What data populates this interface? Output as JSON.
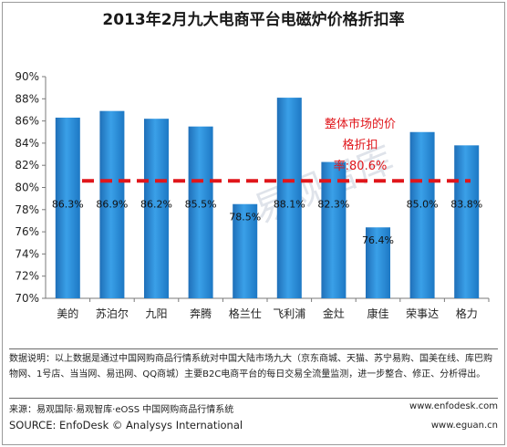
{
  "title": "2013年2月九大电商平台电磁炉价格折扣率",
  "chart_data": {
    "type": "bar",
    "categories": [
      "美的",
      "苏泊尔",
      "九阳",
      "奔腾",
      "格兰仕",
      "飞利浦",
      "金灶",
      "康佳",
      "荣事达",
      "格力"
    ],
    "values": [
      86.3,
      86.9,
      86.2,
      85.5,
      78.5,
      88.1,
      82.3,
      76.4,
      85.0,
      83.8
    ],
    "data_labels": [
      "86.3%",
      "86.9%",
      "86.2%",
      "85.5%",
      "78.5%",
      "88.1%",
      "82.3%",
      "76.4%",
      "85.0%",
      "83.8%"
    ],
    "ylim": [
      70,
      90
    ],
    "y_ticks": [
      "70%",
      "72%",
      "74%",
      "76%",
      "78%",
      "80%",
      "82%",
      "84%",
      "86%",
      "88%",
      "90%"
    ],
    "reference_line": {
      "value": 80.6,
      "label": "整体市场的价格折扣率:80.6%",
      "label_lines": [
        "整体市场的价",
        "格折扣",
        "率:80.6%"
      ],
      "color": "#e0161b"
    },
    "bar_color": "#2a8fd6",
    "grid": false,
    "legend": "none"
  },
  "watermark": "易观智库",
  "notes": {
    "text": "数据说明：以上数据是通过中国网购商品行情系统对中国大陆市场九大（京东商城、天猫、苏宁易购、国美在线、库巴购物网、1号店、当当网、易迅网、QQ商城）主要B2C电商平台的每日交易全流量监测，进一步整合、修正、分析得出。"
  },
  "source": {
    "cn": "来源：易观国际·易观智库·eOSS 中国网购商品行情系统",
    "en": "SOURCE: EnfoDesk © Analysys International",
    "url1": "www.enfodesk.com",
    "url2": "www.eguan.cn"
  }
}
